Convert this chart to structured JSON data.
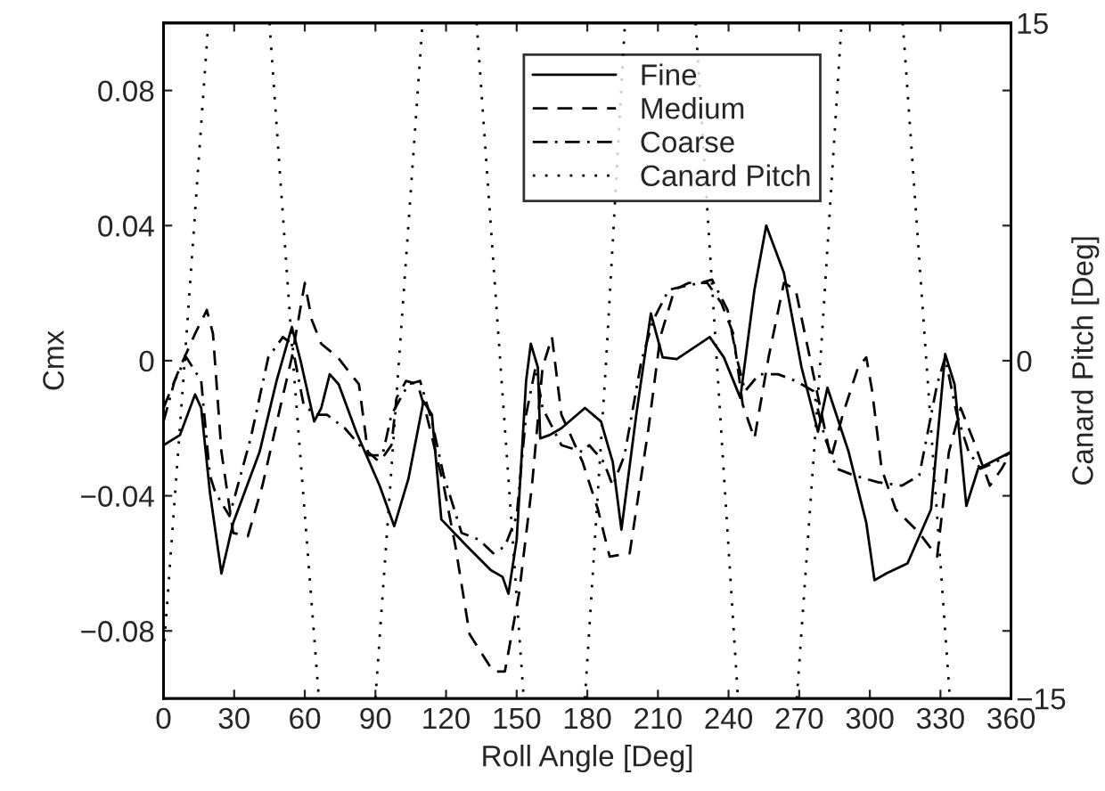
{
  "chart_data": {
    "type": "line",
    "xlabel": "Roll Angle [Deg]",
    "ylabel": "Cmx",
    "y2label": "Canard Pitch [Deg]",
    "xlim": [
      0,
      360
    ],
    "xticks": [
      0,
      30,
      60,
      90,
      120,
      150,
      180,
      210,
      240,
      270,
      300,
      330,
      360
    ],
    "ylim": [
      -0.1,
      0.1
    ],
    "yticks": [
      -0.08,
      -0.04,
      0,
      0.04,
      0.08
    ],
    "y2lim": [
      -15,
      15
    ],
    "y2ticks": [
      -15,
      {
        "value": -12,
        "label": null
      },
      {
        "value": -6,
        "label": null
      },
      0,
      {
        "value": 6,
        "label": null
      },
      {
        "value": 12,
        "label": null
      },
      15
    ],
    "grid": false,
    "legend": "top",
    "series": [
      {
        "name": "Fine",
        "color": "#000000",
        "line_style": "solid",
        "x": [
          0,
          7,
          13.4,
          16,
          19.7,
          24.6,
          29.6,
          40.8,
          48,
          54.5,
          58.2,
          64,
          67,
          70.6,
          74.4,
          81.8,
          91.8,
          98,
          104,
          110.4,
          114,
          118,
          129,
          139,
          144,
          146.5,
          150,
          154,
          156,
          159,
          160,
          164,
          169,
          179,
          185.8,
          190.8,
          194.5,
          200.8,
          207,
          212,
          218,
          232,
          238,
          245,
          251,
          256,
          263.5,
          271,
          278,
          282,
          291,
          298.5,
          302,
          307,
          316,
          326,
          332,
          336,
          341,
          346,
          360
        ],
        "values": [
          -0.025,
          -0.022,
          -0.01,
          -0.014,
          -0.039,
          -0.063,
          -0.048,
          -0.027,
          -0.006,
          0.01,
          0.0,
          -0.018,
          -0.014,
          -0.004,
          -0.007,
          -0.021,
          -0.037,
          -0.049,
          -0.035,
          -0.012,
          -0.016,
          -0.047,
          -0.055,
          -0.062,
          -0.064,
          -0.069,
          -0.053,
          -0.006,
          0.005,
          -0.002,
          -0.023,
          -0.022,
          -0.02,
          -0.014,
          -0.018,
          -0.03,
          -0.05,
          -0.016,
          0.014,
          0.001,
          0.0005,
          0.007,
          0.001,
          -0.011,
          0.021,
          0.04,
          0.026,
          -0.002,
          -0.021,
          -0.008,
          -0.027,
          -0.048,
          -0.065,
          -0.063,
          -0.06,
          -0.044,
          0.002,
          -0.007,
          -0.043,
          -0.032,
          -0.027
        ]
      },
      {
        "name": "Medium",
        "color": "#000000",
        "line_style": "dashed",
        "x": [
          0,
          7,
          13.4,
          18.4,
          21,
          24.6,
          29.6,
          35.8,
          42,
          49.5,
          54.5,
          60,
          63,
          67,
          74,
          83,
          86.8,
          91.8,
          96.8,
          99,
          103,
          108,
          111.7,
          119,
          124,
          130,
          140,
          145,
          151,
          156.5,
          161,
          165,
          169,
          178,
          184.5,
          189.5,
          198,
          206,
          211,
          217,
          223,
          231,
          237,
          242,
          246,
          251,
          257,
          263.5,
          268.5,
          276,
          283.5,
          288.5,
          295,
          298.5,
          301,
          305,
          311,
          321,
          328.6,
          333.6,
          338.6,
          343.7,
          351,
          356,
          360
        ],
        "values": [
          -0.014,
          -0.002,
          0.008,
          0.015,
          0.008,
          -0.027,
          -0.051,
          -0.052,
          -0.037,
          -0.014,
          0.001,
          0.023,
          0.012,
          0.005,
          0.001,
          -0.007,
          -0.027,
          -0.03,
          -0.025,
          -0.011,
          -0.006,
          -0.007,
          -0.016,
          -0.037,
          -0.055,
          -0.081,
          -0.092,
          -0.092,
          -0.069,
          -0.037,
          -0.002,
          0.007,
          -0.016,
          -0.03,
          -0.044,
          -0.058,
          -0.057,
          -0.02,
          0.007,
          0.021,
          0.023,
          0.023,
          0.017,
          0.008,
          -0.013,
          -0.023,
          0.001,
          0.023,
          0.021,
          -0.004,
          -0.029,
          -0.016,
          -0.002,
          0.001,
          -0.009,
          -0.032,
          -0.044,
          -0.051,
          -0.058,
          -0.027,
          -0.014,
          -0.023,
          -0.037,
          -0.032,
          -0.027
        ]
      },
      {
        "name": "Coarse",
        "color": "#000000",
        "line_style": "dashdot",
        "x": [
          0,
          4.7,
          9.7,
          16,
          19.7,
          22,
          28,
          37,
          44.5,
          50.7,
          54.5,
          59.5,
          64.4,
          69.4,
          77,
          87,
          93,
          96.8,
          104,
          109,
          114,
          119,
          126.6,
          134,
          140,
          145,
          150,
          154,
          158,
          161,
          169,
          178,
          180.8,
          187,
          190.8,
          195.8,
          203,
          208,
          214.6,
          221,
          228,
          233,
          239.6,
          243.4,
          247,
          253,
          261,
          268.5,
          276,
          281,
          286,
          293.5,
          303.5,
          313.6,
          321,
          328.6,
          332,
          337,
          342,
          347,
          353.7,
          360
        ],
        "values": [
          -0.018,
          -0.006,
          0.001,
          -0.006,
          -0.034,
          -0.039,
          -0.046,
          -0.023,
          0.001,
          0.007,
          0.005,
          -0.013,
          -0.016,
          -0.016,
          -0.02,
          -0.028,
          -0.028,
          -0.016,
          -0.007,
          -0.006,
          -0.018,
          -0.034,
          -0.051,
          -0.053,
          -0.057,
          -0.055,
          -0.046,
          -0.016,
          -0.002,
          -0.014,
          -0.025,
          -0.027,
          -0.025,
          -0.03,
          -0.037,
          -0.028,
          0.0,
          0.012,
          0.021,
          0.022,
          0.023,
          0.024,
          0.015,
          0.001,
          -0.009,
          -0.004,
          -0.004,
          -0.006,
          -0.009,
          -0.023,
          -0.032,
          -0.034,
          -0.036,
          -0.037,
          -0.034,
          -0.007,
          0.001,
          -0.016,
          -0.027,
          -0.032,
          -0.03,
          -0.027
        ]
      },
      {
        "name": "Canard Pitch",
        "color": "#000000",
        "line_style": "dotted",
        "axis": "y2",
        "x": [
          0,
          9,
          19,
          20,
          45,
          55,
          66,
          70,
          90,
          100,
          110,
          115,
          133,
          143,
          153,
          160,
          179,
          188,
          196,
          200,
          226,
          235,
          244,
          250,
          269,
          279,
          288,
          300,
          314,
          324,
          334
        ],
        "values": [
          -13,
          0,
          15,
          null,
          15,
          0,
          -15,
          null,
          -15,
          0,
          15,
          null,
          15,
          0,
          -15,
          null,
          -15,
          0,
          15,
          null,
          15,
          0,
          -15,
          null,
          -15,
          0,
          15,
          null,
          15,
          0,
          -15
        ]
      }
    ]
  }
}
